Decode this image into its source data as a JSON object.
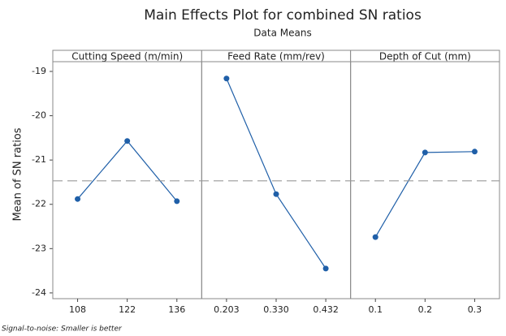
{
  "chart_data": {
    "type": "line",
    "title": "Main Effects Plot for combined SN ratios",
    "subtitle": "Data Means",
    "y_label": "Mean of SN ratios",
    "footnote": "Signal-to-noise: Smaller is better",
    "color": "#1f5fa8",
    "reference_line": -21.47,
    "ylim": [
      -24.13,
      -18.78
    ],
    "yticks": [
      -24,
      -23,
      -22,
      -21,
      -20,
      -19
    ],
    "panels": [
      {
        "name": "Cutting Speed  (m/min)",
        "categories": [
          "108",
          "122",
          "136"
        ],
        "values": [
          -21.88,
          -20.57,
          -21.93
        ]
      },
      {
        "name": "Feed Rate (mm/rev)",
        "categories": [
          "0.203",
          "0.330",
          "0.432"
        ],
        "values": [
          -19.16,
          -21.77,
          -23.45
        ]
      },
      {
        "name": "Depth of Cut (mm)",
        "categories": [
          "0.1",
          "0.2",
          "0.3"
        ],
        "values": [
          -22.74,
          -20.83,
          -20.81
        ]
      }
    ]
  }
}
